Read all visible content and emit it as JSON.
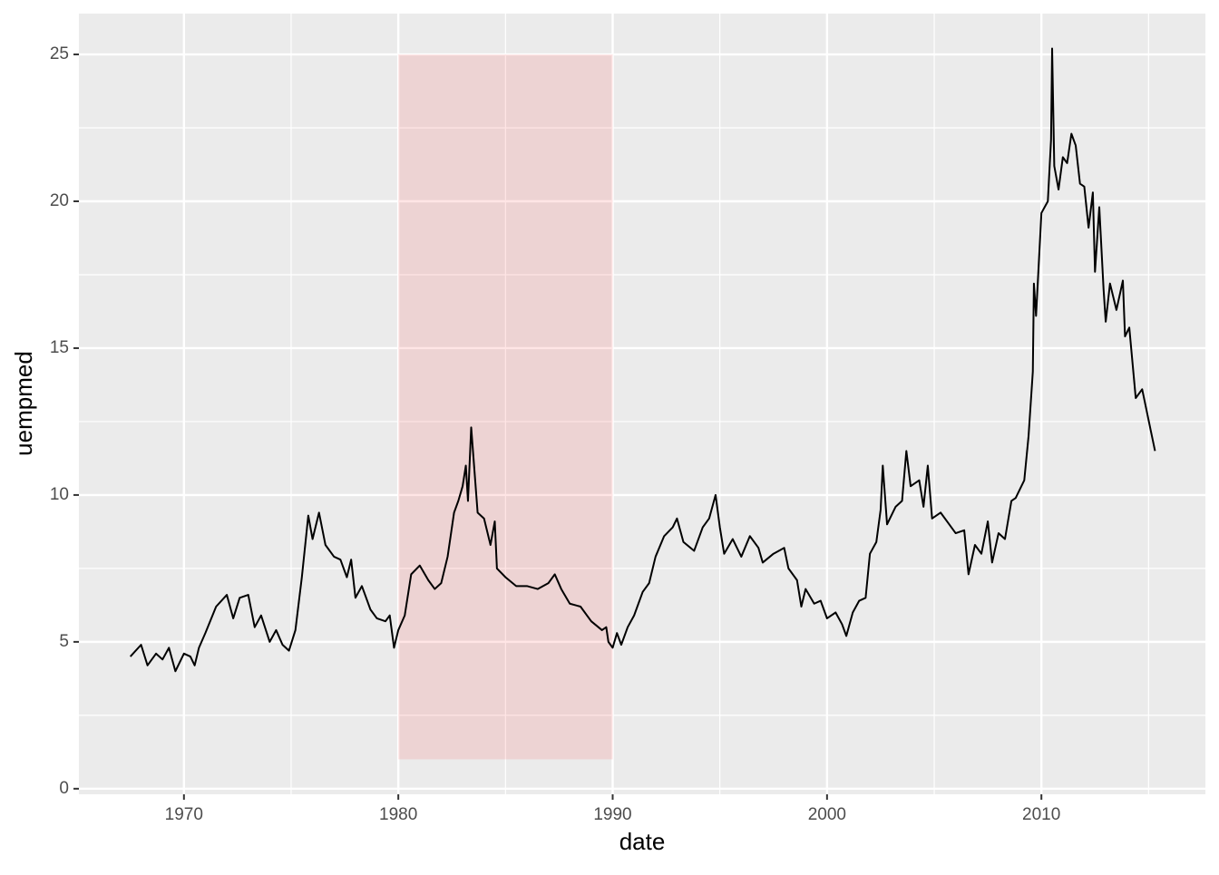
{
  "chart_data": {
    "type": "line",
    "x_label": "date",
    "y_label": "uempmed",
    "x": [
      1967.5,
      1968.0,
      1968.3,
      1968.7,
      1969.0,
      1969.3,
      1969.6,
      1970.0,
      1970.3,
      1970.5,
      1970.7,
      1971.0,
      1971.5,
      1972.0,
      1972.3,
      1972.6,
      1973.0,
      1973.3,
      1973.6,
      1974.0,
      1974.3,
      1974.6,
      1974.9,
      1975.2,
      1975.5,
      1975.8,
      1976.0,
      1976.3,
      1976.6,
      1977.0,
      1977.3,
      1977.6,
      1977.8,
      1978.0,
      1978.3,
      1978.7,
      1979.0,
      1979.4,
      1979.6,
      1979.8,
      1980.0,
      1980.3,
      1980.6,
      1981.0,
      1981.4,
      1981.7,
      1982.0,
      1982.3,
      1982.6,
      1982.8,
      1983.0,
      1983.15,
      1983.25,
      1983.4,
      1983.7,
      1984.0,
      1984.3,
      1984.5,
      1984.6,
      1985.0,
      1985.5,
      1986.0,
      1986.5,
      1987.0,
      1987.3,
      1987.6,
      1988.0,
      1988.5,
      1989.0,
      1989.5,
      1989.7,
      1989.8,
      1990.0,
      1990.2,
      1990.4,
      1990.7,
      1991.0,
      1991.4,
      1991.7,
      1992.0,
      1992.4,
      1992.8,
      1993.0,
      1993.3,
      1993.8,
      1994.2,
      1994.5,
      1994.8,
      1995.0,
      1995.2,
      1995.6,
      1996.0,
      1996.4,
      1996.8,
      1997.0,
      1997.5,
      1998.0,
      1998.2,
      1998.6,
      1998.8,
      1999.0,
      1999.4,
      1999.7,
      2000.0,
      2000.4,
      2000.7,
      2000.9,
      2001.2,
      2001.5,
      2001.8,
      2002.0,
      2002.3,
      2002.5,
      2002.6,
      2002.8,
      2003.2,
      2003.5,
      2003.7,
      2003.9,
      2004.3,
      2004.5,
      2004.7,
      2004.9,
      2005.3,
      2005.7,
      2006.0,
      2006.4,
      2006.6,
      2006.9,
      2007.2,
      2007.5,
      2007.7,
      2008.0,
      2008.3,
      2008.6,
      2008.8,
      2009.0,
      2009.2,
      2009.4,
      2009.6,
      2009.65,
      2009.75,
      2010.0,
      2010.3,
      2010.45,
      2010.5,
      2010.6,
      2010.8,
      2011.0,
      2011.2,
      2011.4,
      2011.6,
      2011.8,
      2012.0,
      2012.2,
      2012.4,
      2012.5,
      2012.7,
      2012.9,
      2013.0,
      2013.2,
      2013.5,
      2013.8,
      2013.9,
      2014.1,
      2014.4,
      2014.7,
      2014.9,
      2015.1,
      2015.3
    ],
    "series": [
      {
        "color": "#000000",
        "values": [
          4.5,
          4.9,
          4.2,
          4.6,
          4.4,
          4.8,
          4.0,
          4.6,
          4.5,
          4.2,
          4.8,
          5.3,
          6.2,
          6.6,
          5.8,
          6.5,
          6.6,
          5.5,
          5.9,
          5.0,
          5.4,
          4.9,
          4.7,
          5.4,
          7.2,
          9.3,
          8.5,
          9.4,
          8.3,
          7.9,
          7.8,
          7.2,
          7.8,
          6.5,
          6.9,
          6.1,
          5.8,
          5.7,
          5.9,
          4.8,
          5.4,
          5.9,
          7.3,
          7.6,
          7.1,
          6.8,
          7.0,
          7.9,
          9.4,
          9.8,
          10.3,
          11.0,
          9.8,
          12.3,
          9.4,
          9.2,
          8.3,
          9.1,
          7.5,
          7.2,
          6.9,
          6.9,
          6.8,
          7.0,
          7.3,
          6.8,
          6.3,
          6.2,
          5.7,
          5.4,
          5.5,
          5.0,
          4.8,
          5.3,
          4.9,
          5.5,
          5.9,
          6.7,
          7.0,
          7.9,
          8.6,
          8.9,
          9.2,
          8.4,
          8.1,
          8.9,
          9.2,
          10.0,
          8.9,
          8.0,
          8.5,
          7.9,
          8.6,
          8.2,
          7.7,
          8.0,
          8.2,
          7.5,
          7.1,
          6.2,
          6.8,
          6.3,
          6.4,
          5.8,
          6.0,
          5.6,
          5.2,
          6.0,
          6.4,
          6.5,
          8.0,
          8.4,
          9.5,
          11.0,
          9.0,
          9.6,
          9.8,
          11.5,
          10.3,
          10.5,
          9.6,
          11.0,
          9.2,
          9.4,
          9.0,
          8.7,
          8.8,
          7.3,
          8.3,
          8.0,
          9.1,
          7.7,
          8.7,
          8.5,
          9.8,
          9.9,
          10.2,
          10.5,
          12.0,
          14.2,
          17.2,
          16.1,
          19.6,
          20.0,
          22.1,
          25.2,
          21.2,
          20.4,
          21.5,
          21.3,
          22.3,
          21.9,
          20.6,
          20.5,
          19.1,
          20.3,
          17.6,
          19.8,
          17.0,
          15.9,
          17.2,
          16.3,
          17.3,
          15.4,
          15.7,
          13.3,
          13.6,
          12.9,
          12.2,
          11.5
        ]
      }
    ],
    "annotation_rect": {
      "xmin": 1980,
      "xmax": 1990,
      "ymin": 1,
      "ymax": 25,
      "fill": "red",
      "alpha": 0.1
    },
    "xlim": [
      1965.1,
      2017.65
    ],
    "ylim": [
      -0.19,
      26.39
    ],
    "xticks": [
      1970,
      1980,
      1990,
      2000,
      2010
    ],
    "yticks": [
      0,
      5,
      10,
      15,
      20,
      25
    ],
    "x_minor": [
      1975,
      1985,
      1995,
      2005,
      2015
    ],
    "y_minor": [
      2.5,
      7.5,
      12.5,
      17.5,
      22.5
    ],
    "grid": true
  }
}
